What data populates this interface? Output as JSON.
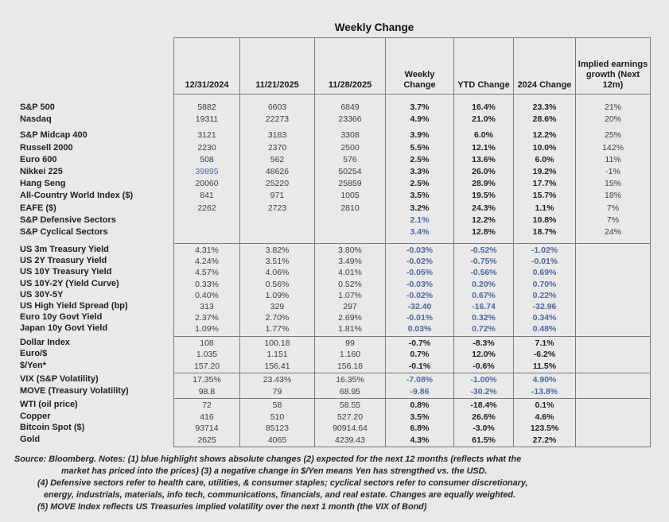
{
  "chart_data": {
    "type": "table",
    "title": "Weekly Change",
    "columns": [
      "12/31/2024",
      "11/21/2025",
      "11/28/2025",
      "Weekly Change",
      "YTD Change",
      "2024 Change",
      "Implied earnings growth (Next 12m)"
    ],
    "groups": [
      {
        "name": "equities",
        "rows": [
          {
            "label": "S&P 500",
            "values": [
              "5882",
              "6603",
              "6849",
              "3.7%",
              "16.4%",
              "23.3%",
              "21%"
            ],
            "blue": []
          },
          {
            "label": "Nasdaq",
            "values": [
              "19311",
              "22273",
              "23366",
              "4.9%",
              "21.0%",
              "28.6%",
              "20%"
            ],
            "blue": []
          },
          {
            "label": "S&P Midcap 400",
            "values": [
              "3121",
              "3183",
              "3308",
              "3.9%",
              "6.0%",
              "12.2%",
              "25%"
            ],
            "blue": []
          },
          {
            "label": "Russell 2000",
            "values": [
              "2230",
              "2370",
              "2500",
              "5.5%",
              "12.1%",
              "10.0%",
              "142%"
            ],
            "blue": []
          },
          {
            "label": "Euro 600",
            "values": [
              "508",
              "562",
              "576",
              "2.5%",
              "13.6%",
              "6.0%",
              "11%"
            ],
            "blue": []
          },
          {
            "label": "Nikkei 225",
            "values": [
              "39895",
              "48626",
              "50254",
              "3.3%",
              "26.0%",
              "19.2%",
              "-1%"
            ],
            "blue": [
              0
            ]
          },
          {
            "label": "Hang Seng",
            "values": [
              "20060",
              "25220",
              "25859",
              "2.5%",
              "28.9%",
              "17.7%",
              "15%"
            ],
            "blue": []
          },
          {
            "label": "All-Country World Index ($)",
            "values": [
              "841",
              "971",
              "1005",
              "3.5%",
              "19.5%",
              "15.7%",
              "18%"
            ],
            "blue": []
          },
          {
            "label": "EAFE ($)",
            "values": [
              "2262",
              "2723",
              "2810",
              "3.2%",
              "24.3%",
              "1.1%",
              "7%"
            ],
            "blue": []
          },
          {
            "label": "S&P Defensive Sectors",
            "values": [
              "",
              "",
              "",
              "2.1%",
              "12.2%",
              "10.8%",
              "7%"
            ],
            "blue": [
              3
            ]
          },
          {
            "label": "S&P Cyclical Sectors",
            "values": [
              "",
              "",
              "",
              "3.4%",
              "12.8%",
              "18.7%",
              "24%"
            ],
            "blue": [
              3
            ]
          }
        ]
      },
      {
        "name": "rates",
        "rows": [
          {
            "label": "US 3m Treasury Yield",
            "values": [
              "4.31%",
              "3.82%",
              "3.80%",
              "-0.03%",
              "-0.52%",
              "-1.02%",
              ""
            ],
            "blue": [
              3,
              4,
              5
            ]
          },
          {
            "label": "US 2Y Treasury Yield",
            "values": [
              "4.24%",
              "3.51%",
              "3.49%",
              "-0.02%",
              "-0.75%",
              "-0.01%",
              ""
            ],
            "blue": [
              3,
              4,
              5
            ]
          },
          {
            "label": "US 10Y Treasury Yield",
            "values": [
              "4.57%",
              "4.06%",
              "4.01%",
              "-0.05%",
              "-0.56%",
              "0.69%",
              ""
            ],
            "blue": [
              3,
              4,
              5
            ]
          },
          {
            "label": "US 10Y-2Y (Yield Curve)",
            "values": [
              "0.33%",
              "0.56%",
              "0.52%",
              "-0.03%",
              "0.20%",
              "0.70%",
              ""
            ],
            "blue": [
              3,
              4,
              5
            ]
          },
          {
            "label": "US 30Y-5Y",
            "values": [
              "0.40%",
              "1.09%",
              "1.07%",
              "-0.02%",
              "0.67%",
              "0.22%",
              ""
            ],
            "blue": [
              3,
              4,
              5
            ]
          },
          {
            "label": "US High Yield Spread (bp)",
            "values": [
              "313",
              "329",
              "297",
              "-32.40",
              "-16.74",
              "-32.96",
              ""
            ],
            "blue": [
              3,
              4,
              5
            ]
          },
          {
            "label": "Euro 10y Govt Yield",
            "values": [
              "2.37%",
              "2.70%",
              "2.69%",
              "-0.01%",
              "0.32%",
              "0.34%",
              ""
            ],
            "blue": [
              3,
              4,
              5
            ]
          },
          {
            "label": "Japan 10y Govt Yield",
            "values": [
              "1.09%",
              "1.77%",
              "1.81%",
              "0.03%",
              "0.72%",
              "0.48%",
              ""
            ],
            "blue": [
              3,
              4,
              5
            ]
          }
        ]
      },
      {
        "name": "currencies",
        "rows": [
          {
            "label": "Dollar Index",
            "values": [
              "108",
              "100.18",
              "99",
              "-0.7%",
              "-8.3%",
              "7.1%",
              ""
            ],
            "blue": []
          },
          {
            "label": "Euro/$",
            "values": [
              "1.035",
              "1.151",
              "1.160",
              "0.7%",
              "12.0%",
              "-6.2%",
              ""
            ],
            "blue": []
          },
          {
            "label": "$/Yen*",
            "values": [
              "157.20",
              "156.41",
              "156.18",
              "-0.1%",
              "-0.6%",
              "11.5%",
              ""
            ],
            "blue": []
          }
        ]
      },
      {
        "name": "volatility",
        "rows": [
          {
            "label": "VIX (S&P Volatility)",
            "values": [
              "17.35%",
              "23.43%",
              "16.35%",
              "-7.08%",
              "-1.00%",
              "4.90%",
              ""
            ],
            "blue": [
              3,
              4,
              5
            ]
          },
          {
            "label": "MOVE (Treasury Volatility)",
            "values": [
              "98.8",
              "79",
              "68.95",
              "-9.86",
              "-30.2%",
              "-13.8%",
              ""
            ],
            "blue": [
              3,
              4,
              5
            ]
          }
        ]
      },
      {
        "name": "commodities",
        "rows": [
          {
            "label": "WTI (oil price)",
            "values": [
              "72",
              "58",
              "58.55",
              "0.8%",
              "-18.4%",
              "0.1%",
              ""
            ],
            "blue": []
          },
          {
            "label": "Copper",
            "values": [
              "416",
              "510",
              "527.20",
              "3.5%",
              "26.6%",
              "4.6%",
              ""
            ],
            "blue": []
          },
          {
            "label": "Bitcoin Spot ($)",
            "values": [
              "93714",
              "85123",
              "90914.64",
              "6.8%",
              "-3.0%",
              "123.5%",
              ""
            ],
            "blue": []
          },
          {
            "label": "Gold",
            "values": [
              "2625",
              "4065",
              "4239.43",
              "4.3%",
              "61.5%",
              "27.2%",
              ""
            ],
            "blue": []
          }
        ]
      }
    ],
    "notes": [
      "Source: Bloomberg. Notes: (1) blue highlight shows absolute changes (2) expected for the next 12 months (reflects what the",
      "market has priced into the prices) (3) a negative change in $/Yen means Yen has strengthed vs. the USD.",
      "(4) Defensive sectors refer to health care, utilities, & consumer staples; cyclical sectors refer to consumer discretionary,",
      "energy, industrials, materials, info tech, communications, financials, and real estate. Changes are equally weighted.",
      "(5) MOVE Index reflects US Treasuries implied volatility over the next 1 month (the VIX of Bond)"
    ]
  },
  "colors": {
    "highlight_blue": "#4f679e",
    "background": "#e9e9e9",
    "grid_border": "#7a7a7a"
  }
}
